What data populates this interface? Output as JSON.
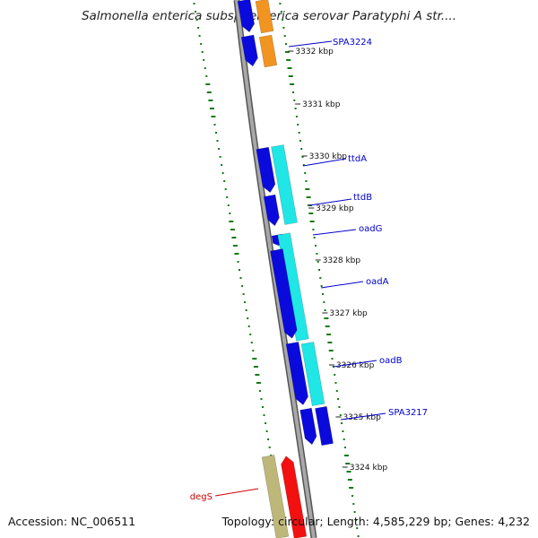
{
  "title": "Salmonella enterica subsp. enterica serovar Paratyphi A str....",
  "footer": {
    "accession": "Accession: NC_006511",
    "summary": "Topology: circular; Length: 4,585,229 bp; Genes: 4,232"
  },
  "colors": {
    "backbone": "#8a8a8a",
    "forward_cds": "#0a0adc",
    "reverse_cds": "#20e6e6",
    "orange_cds": "#f29420",
    "tan_cds": "#bdb77a",
    "red_cds": "#f21010",
    "gc_ticks": "#117a11",
    "blue_label": "#0000cc",
    "red_label": "#cc0000"
  },
  "kbp_ticks": [
    {
      "label": "3332 kbp"
    },
    {
      "label": "3331 kbp"
    },
    {
      "label": "3330 kbp"
    },
    {
      "label": "3329 kbp"
    },
    {
      "label": "3328 kbp"
    },
    {
      "label": "3327 kbp"
    },
    {
      "label": "3326 kbp"
    },
    {
      "label": "3325 kbp"
    },
    {
      "label": "3324 kbp"
    }
  ],
  "gene_labels": [
    {
      "name": "SPA3224",
      "color": "blue"
    },
    {
      "name": "ttdA",
      "color": "blue"
    },
    {
      "name": "ttdB",
      "color": "blue"
    },
    {
      "name": "oadG",
      "color": "blue"
    },
    {
      "name": "oadA",
      "color": "blue"
    },
    {
      "name": "oadB",
      "color": "blue"
    },
    {
      "name": "SPA3217",
      "color": "blue"
    },
    {
      "name": "degS",
      "color": "red"
    }
  ]
}
